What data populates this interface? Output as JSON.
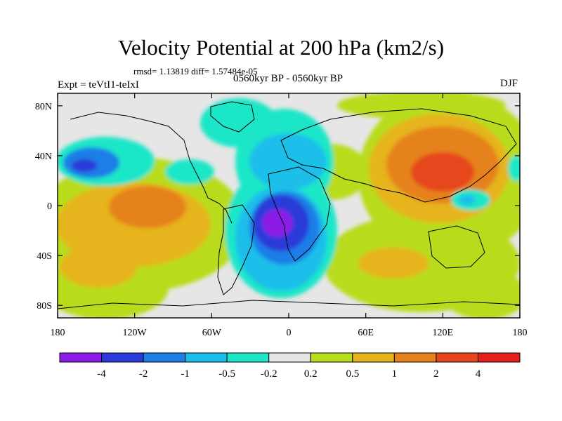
{
  "title": "Velocity Potential at 200 hPa (km2/s)",
  "stats": "rmsd= 1.13819 diff= 1.57484e-05",
  "expt_label": "Expt = teVtI1-teIxI",
  "period_label": "0560kyr BP - 0560kyr BP",
  "season": "DJF",
  "lat_ticks": [
    {
      "label": "80N",
      "lat": 80
    },
    {
      "label": "40N",
      "lat": 40
    },
    {
      "label": "0",
      "lat": 0
    },
    {
      "label": "40S",
      "lat": -40
    },
    {
      "label": "80S",
      "lat": -80
    }
  ],
  "lon_ticks": [
    {
      "label": "180",
      "lon": -180
    },
    {
      "label": "120W",
      "lon": -120
    },
    {
      "label": "60W",
      "lon": -60
    },
    {
      "label": "0",
      "lon": 0
    },
    {
      "label": "60E",
      "lon": 60
    },
    {
      "label": "120E",
      "lon": 120
    },
    {
      "label": "180",
      "lon": 180
    }
  ],
  "colorbar": {
    "colors": [
      "#8b1ee6",
      "#2a3ad8",
      "#1e7ee6",
      "#1ebeea",
      "#1ee6c8",
      "#e6e6e6",
      "#b8dc1e",
      "#e6b41e",
      "#e6821e",
      "#e6461e",
      "#e61e1e"
    ],
    "labels": [
      "-4",
      "-2",
      "-1",
      "-0.5",
      "-0.2",
      "0.2",
      "0.5",
      "1",
      "2",
      "4"
    ]
  }
}
